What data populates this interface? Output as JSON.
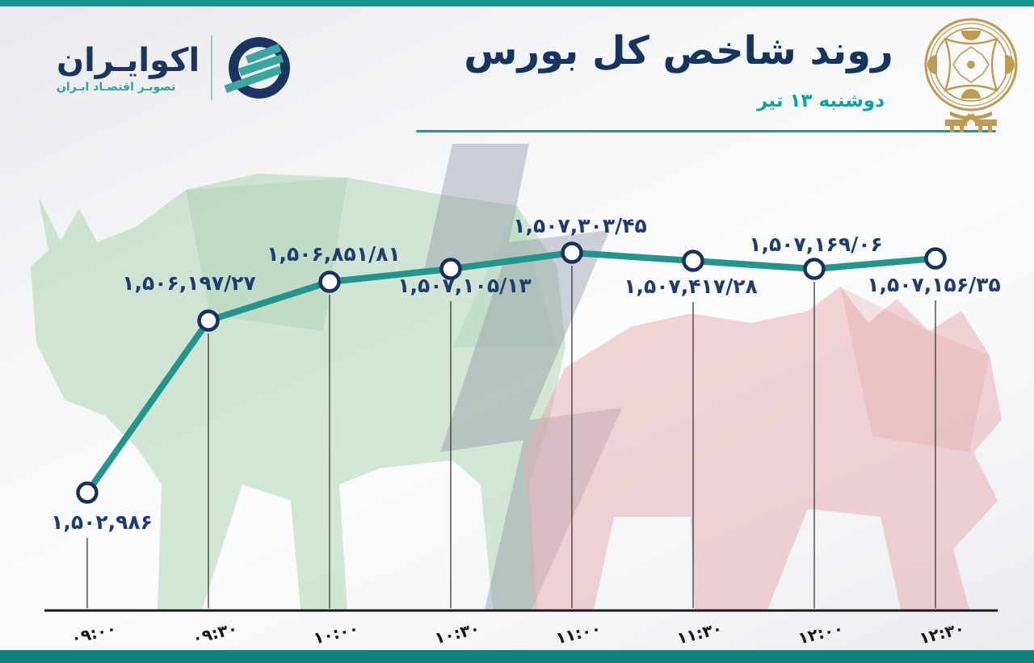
{
  "brand": {
    "name": "اکوایـران",
    "tagline": "تصویـر اقتصـاد ایـران"
  },
  "header": {
    "title": "روند شاخص کل بورس",
    "date": "دوشنبه ۱۳ تیر"
  },
  "colors": {
    "accent_teal": "#14978f",
    "navy": "#16355e",
    "label_navy": "#1e3c72",
    "date_teal": "#0ba49a",
    "gold_emblem": "#bf9b50",
    "bull_green": "#a9d1ae",
    "bear_pink": "#e8aab0",
    "lightning_gray": "#8f96a6"
  },
  "chart_data": {
    "type": "line",
    "title": "روند شاخص کل بورس",
    "subtitle_date": "دوشنبه ۱۳ تیر",
    "x": [
      "09:00",
      "09:30",
      "10:00",
      "10:30",
      "11:00",
      "11:30",
      "12:00",
      "12:30"
    ],
    "x_labels_fa": [
      "۰۹:۰۰",
      "۰۹:۳۰",
      "۱۰:۰۰",
      "۱۰:۳۰",
      "۱۱:۰۰",
      "۱۱:۳۰",
      "۱۲:۰۰",
      "۱۲:۳۰"
    ],
    "values": [
      1502986,
      1506197.27,
      1506851.81,
      1507105.13,
      1507303.45,
      1507417.28,
      1507169.06,
      1507156.35
    ],
    "point_labels_fa": [
      "۱,۵۰۲,۹۸۶",
      "۱,۵۰۶,۱۹۷/۲۷",
      "۱,۵۰۶,۸۵۱/۸۱",
      "۱,۵۰۷,۱۰۵/۱۳",
      "۱,۵۰۷,۳۰۳/۴۵",
      "۱,۵۰۷,۴۱۷/۲۸",
      "۱,۵۰۷,۱۶۹/۰۶",
      "۱,۵۰۷,۱۵۶/۳۵"
    ],
    "ylim": [
      1502500,
      1507600
    ],
    "grid": false,
    "legend": null,
    "line_color": "#22968d",
    "marker_fill": "#ffffff",
    "marker_ring": "#16315e",
    "axis_color": "#1a1a1a"
  }
}
